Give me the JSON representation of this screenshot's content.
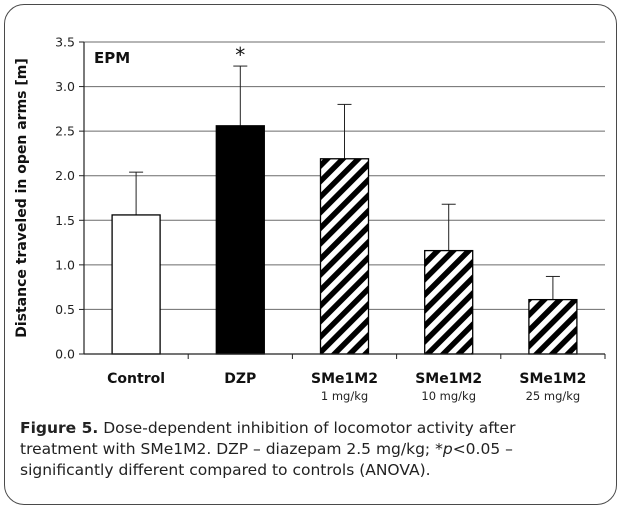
{
  "chart_data": {
    "type": "bar",
    "title": "EPM",
    "ylabel": "Distance traveled in open arms [m]",
    "xlabel": "",
    "ylim": [
      0,
      3.5
    ],
    "yticks": [
      "0.0",
      "0.5",
      "1.0",
      "1.5",
      "2.0",
      "2.5",
      "3.0",
      "3.5"
    ],
    "grid": true,
    "categories": [
      {
        "label": "Control",
        "sublabel": ""
      },
      {
        "label": "DZP",
        "sublabel": ""
      },
      {
        "label": "SMe1M2",
        "sublabel": "1 mg/kg"
      },
      {
        "label": "SMe1M2",
        "sublabel": "10 mg/kg"
      },
      {
        "label": "SMe1M2",
        "sublabel": "25 mg/kg"
      }
    ],
    "values": [
      1.56,
      2.56,
      2.19,
      1.16,
      0.61
    ],
    "errors": [
      0.48,
      0.67,
      0.61,
      0.52,
      0.26
    ],
    "fills": [
      "white",
      "black",
      "hatch",
      "hatch",
      "hatch"
    ],
    "annotations": [
      {
        "category_index": 1,
        "text": "*"
      }
    ]
  },
  "caption": {
    "label": "Figure 5.",
    "text_line1": " Dose-dependent inhibition of locomotor activity after",
    "text_line2": "treatment with SMe1M2. DZP – diazepam 2.5 mg/kg; *",
    "p_italic": "p",
    "text_line2_end": "<0.05 –",
    "text_line3": "significantly different compared to controls (ANOVA)."
  }
}
